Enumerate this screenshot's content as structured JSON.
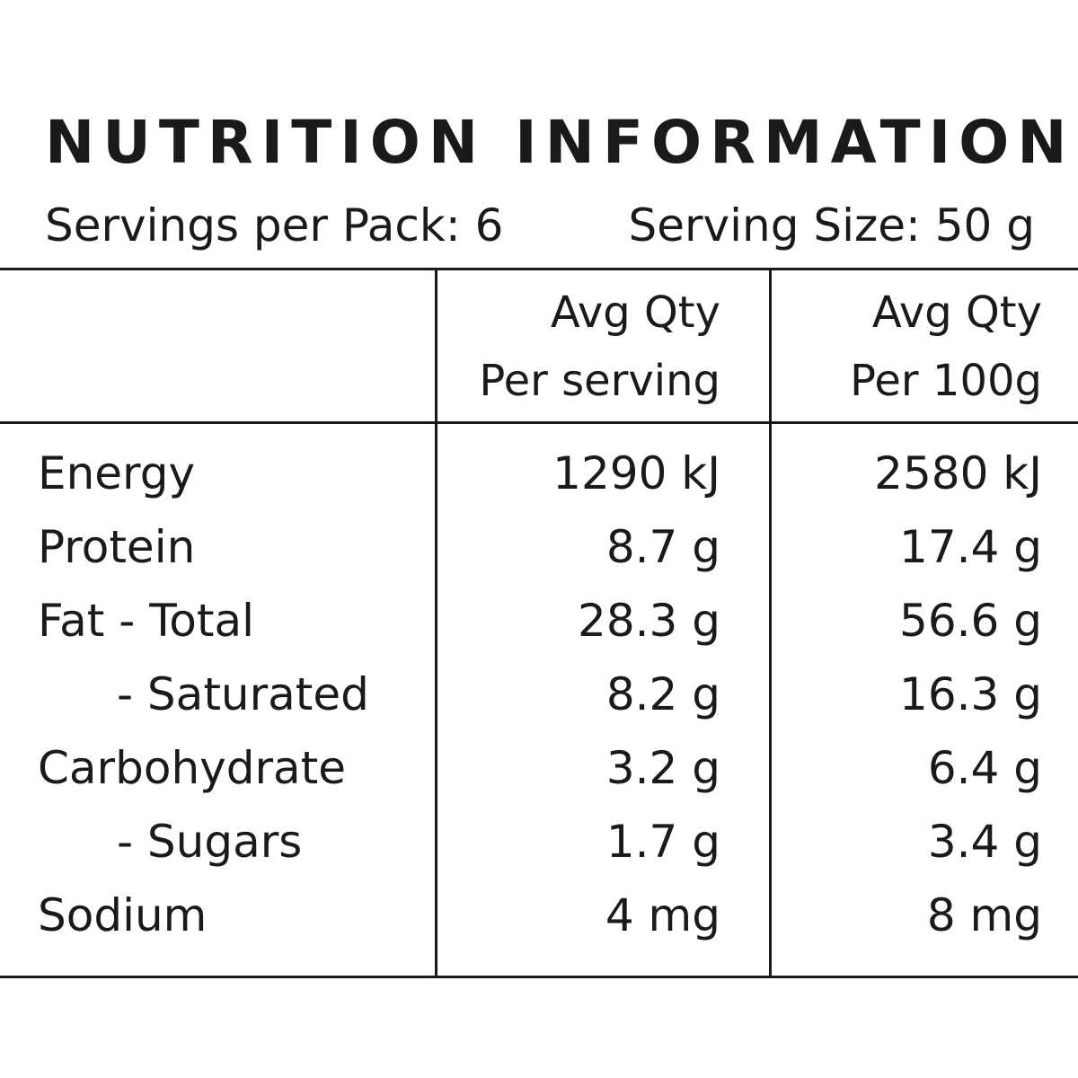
{
  "header": {
    "title": "NUTRITION INFORMATION",
    "servings": "Servings per Pack: 6",
    "serving_size": "Serving Size: 50 g"
  },
  "table": {
    "columns": [
      [
        "Avg Qty",
        "Per serving"
      ],
      [
        "Avg Qty",
        "Per 100g"
      ]
    ],
    "rows": [
      [
        "Energy",
        "1290 kJ",
        "2580 kJ"
      ],
      [
        "Protein",
        "8.7 g",
        "17.4 g"
      ],
      [
        "Fat - Total",
        "28.3 g",
        "56.6 g"
      ],
      [
        "- Saturated",
        "8.2 g",
        "16.3 g"
      ],
      [
        "Carbohydrate",
        "3.2 g",
        "6.4 g"
      ],
      [
        "- Sugars",
        "1.7 g",
        "3.4 g"
      ],
      [
        "Sodium",
        "4 mg",
        "8 mg"
      ]
    ]
  }
}
